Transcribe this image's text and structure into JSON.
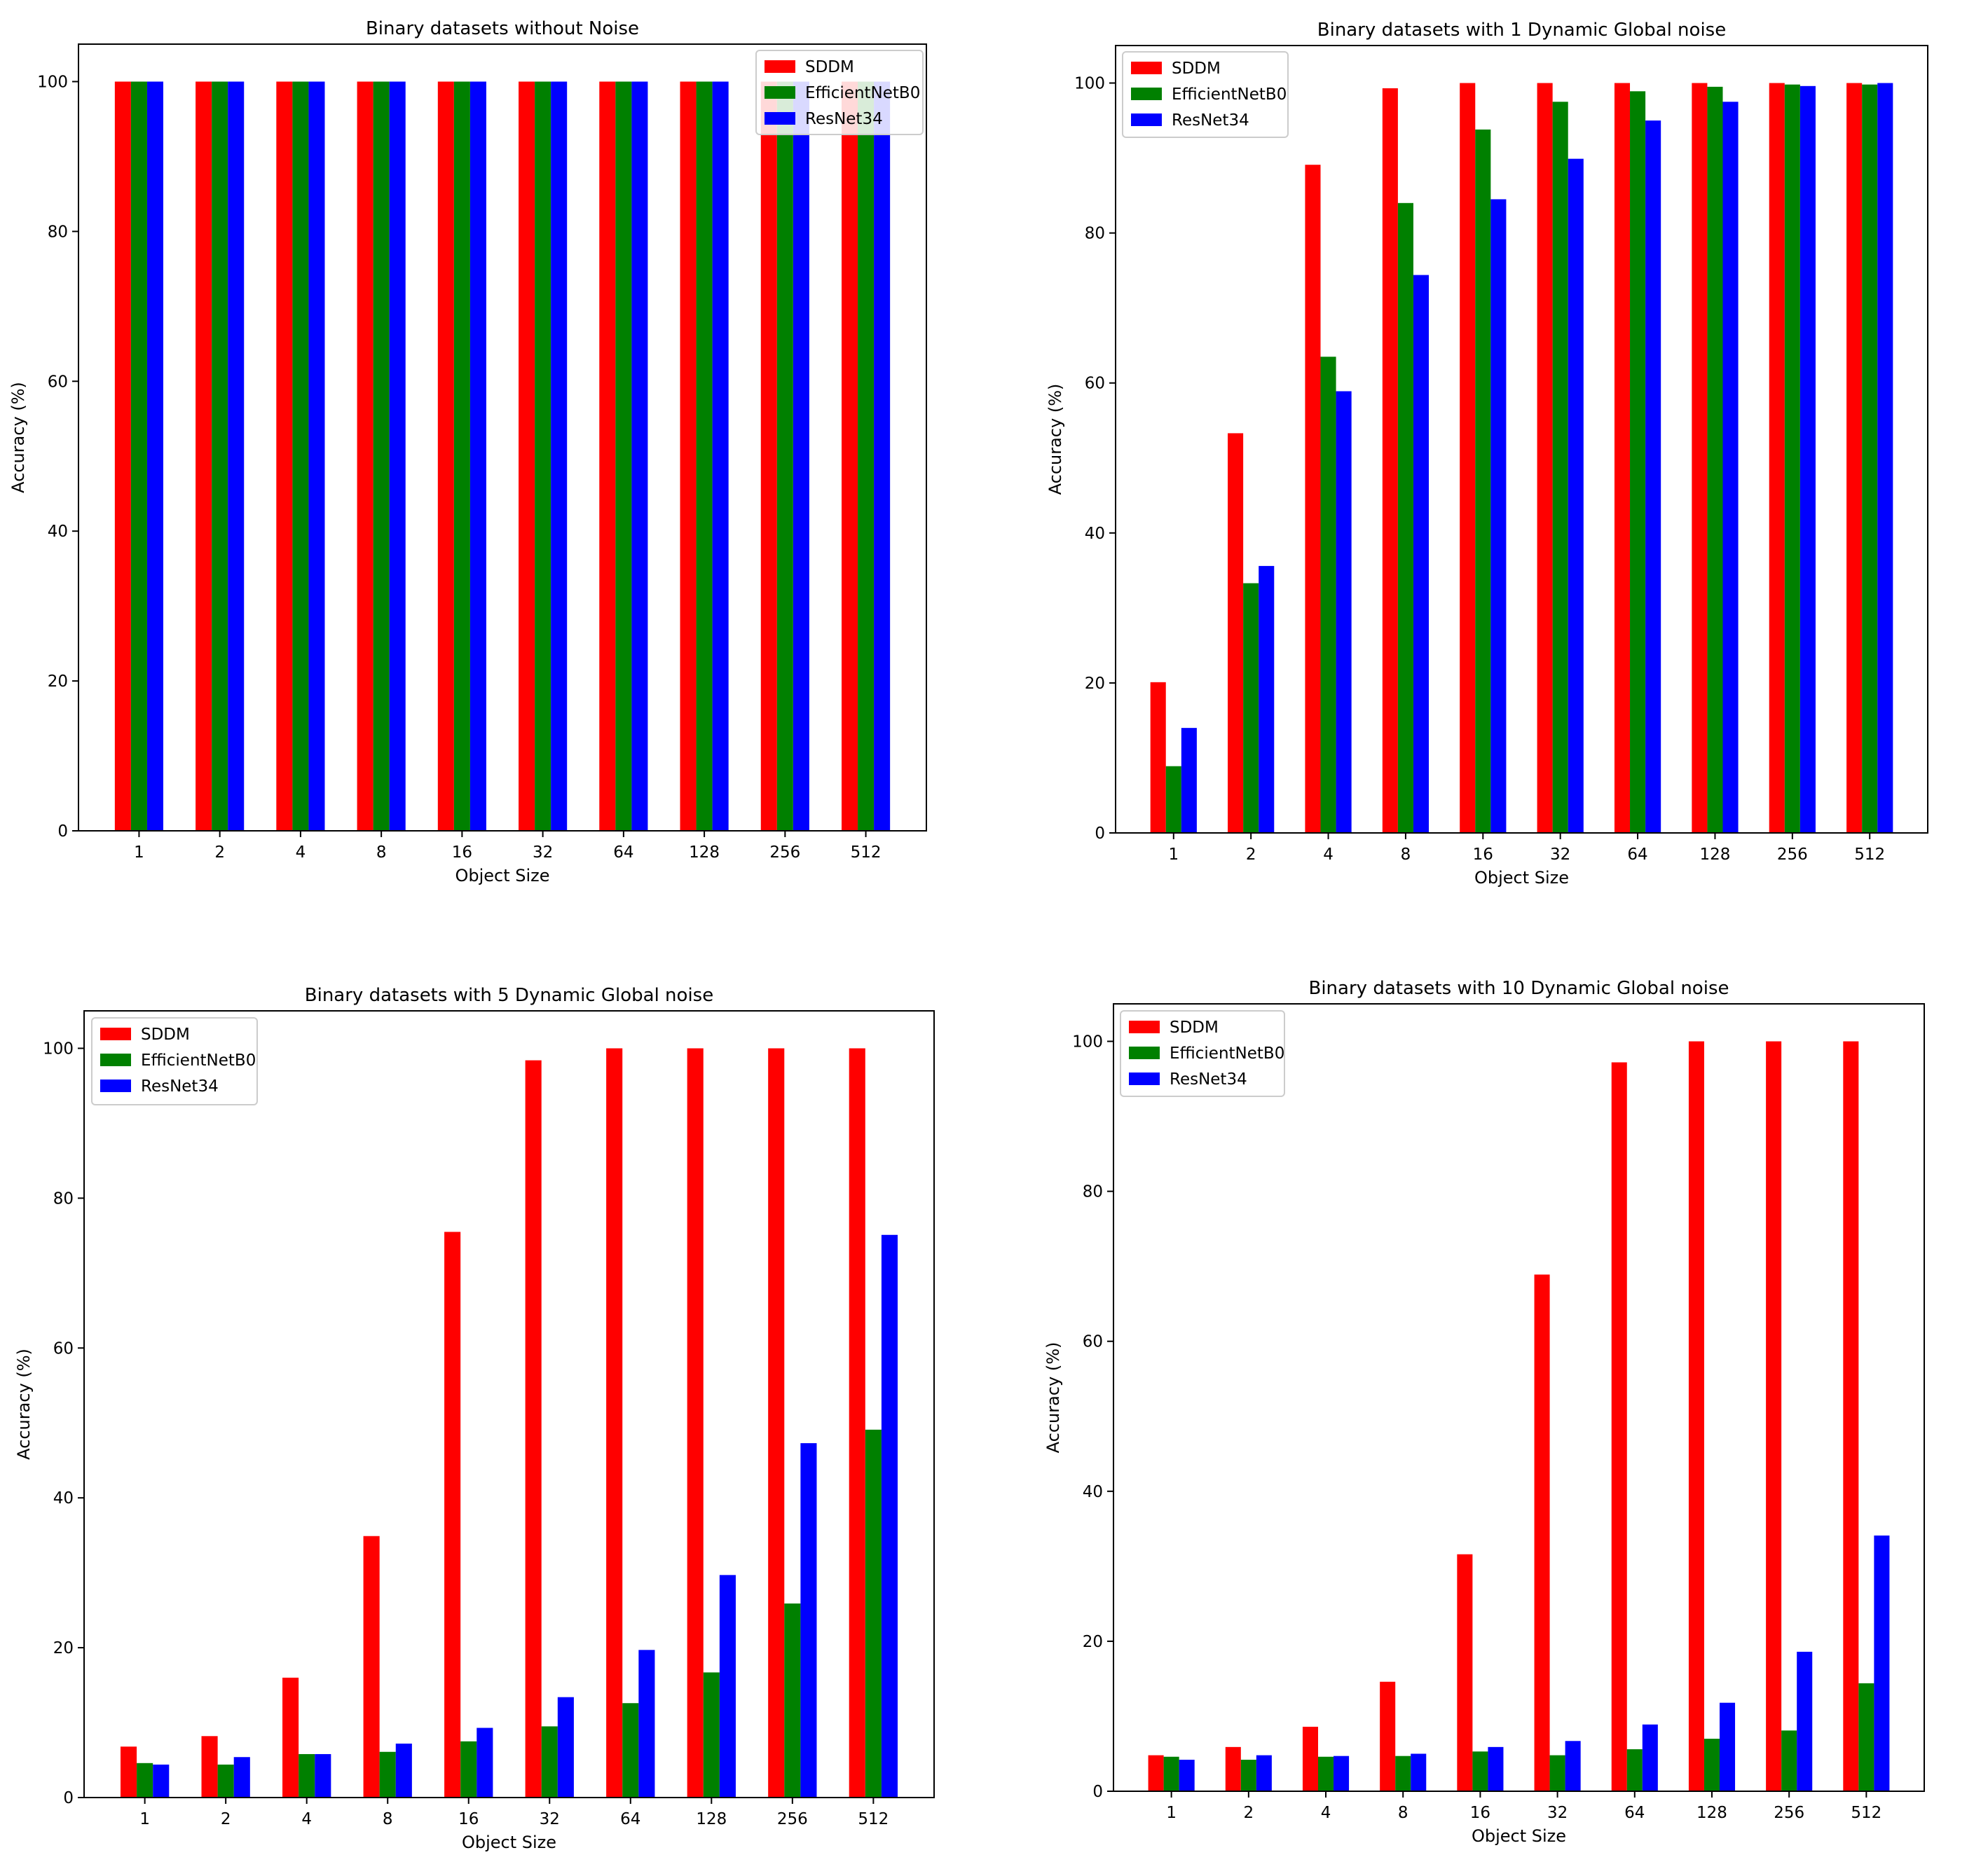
{
  "colors": {
    "SDDM": "#ff0000",
    "EfficientNetB0": "#008000",
    "ResNet34": "#0000ff"
  },
  "chart_data": [
    {
      "type": "bar",
      "title": "Binary datasets without Noise",
      "xlabel": "Object Size",
      "ylabel": "Accuracy (%)",
      "ylim": [
        0,
        105
      ],
      "yticks": [
        0,
        20,
        40,
        60,
        80,
        100
      ],
      "legend_position": "top-right",
      "categories": [
        "1",
        "2",
        "4",
        "8",
        "16",
        "32",
        "64",
        "128",
        "256",
        "512"
      ],
      "series": [
        {
          "name": "SDDM",
          "values": [
            100,
            100,
            100,
            100,
            100,
            100,
            100,
            100,
            100,
            100
          ]
        },
        {
          "name": "EfficientNetB0",
          "values": [
            100,
            100,
            100,
            100,
            100,
            100,
            100,
            100,
            100,
            100
          ]
        },
        {
          "name": "ResNet34",
          "values": [
            100,
            100,
            100,
            100,
            100,
            100,
            100,
            100,
            100,
            100
          ]
        }
      ]
    },
    {
      "type": "bar",
      "title": "Binary datasets with 1 Dynamic Global noise",
      "xlabel": "Object Size",
      "ylabel": "Accuracy (%)",
      "ylim": [
        0,
        105
      ],
      "yticks": [
        0,
        20,
        40,
        60,
        80,
        100
      ],
      "legend_position": "top-left",
      "categories": [
        "1",
        "2",
        "4",
        "8",
        "16",
        "32",
        "64",
        "128",
        "256",
        "512"
      ],
      "series": [
        {
          "name": "SDDM",
          "values": [
            20.1,
            53.3,
            89.1,
            99.3,
            100,
            100,
            100,
            100,
            100,
            100
          ]
        },
        {
          "name": "EfficientNetB0",
          "values": [
            8.9,
            33.3,
            63.5,
            84.0,
            93.8,
            97.5,
            98.9,
            99.5,
            99.8,
            99.8
          ]
        },
        {
          "name": "ResNet34",
          "values": [
            14.0,
            35.6,
            58.9,
            74.4,
            84.5,
            89.9,
            95.0,
            97.5,
            99.6,
            100
          ]
        }
      ]
    },
    {
      "type": "bar",
      "title": "Binary datasets with 5 Dynamic Global noise",
      "xlabel": "Object Size",
      "ylabel": "Accuracy (%)",
      "ylim": [
        0,
        105
      ],
      "yticks": [
        0,
        20,
        40,
        60,
        80,
        100
      ],
      "legend_position": "top-left",
      "categories": [
        "1",
        "2",
        "4",
        "8",
        "16",
        "32",
        "64",
        "128",
        "256",
        "512"
      ],
      "series": [
        {
          "name": "SDDM",
          "values": [
            6.8,
            8.2,
            16.0,
            34.9,
            75.5,
            98.4,
            100,
            100,
            100,
            100
          ]
        },
        {
          "name": "EfficientNetB0",
          "values": [
            4.6,
            4.4,
            5.8,
            6.1,
            7.5,
            9.5,
            12.6,
            16.7,
            25.9,
            49.1
          ]
        },
        {
          "name": "ResNet34",
          "values": [
            4.4,
            5.4,
            5.8,
            7.2,
            9.3,
            13.4,
            19.7,
            29.7,
            47.3,
            75.1
          ]
        }
      ]
    },
    {
      "type": "bar",
      "title": "Binary datasets with 10 Dynamic Global noise",
      "xlabel": "Object Size",
      "ylabel": "Accuracy (%)",
      "ylim": [
        0,
        105
      ],
      "yticks": [
        0,
        20,
        40,
        60,
        80,
        100
      ],
      "legend_position": "top-left",
      "categories": [
        "1",
        "2",
        "4",
        "8",
        "16",
        "32",
        "64",
        "128",
        "256",
        "512"
      ],
      "series": [
        {
          "name": "SDDM",
          "values": [
            4.8,
            5.9,
            8.6,
            14.6,
            31.6,
            68.9,
            97.2,
            100,
            100,
            100
          ]
        },
        {
          "name": "EfficientNetB0",
          "values": [
            4.6,
            4.2,
            4.6,
            4.7,
            5.3,
            4.8,
            5.6,
            7.0,
            8.1,
            14.4
          ]
        },
        {
          "name": "ResNet34",
          "values": [
            4.2,
            4.8,
            4.7,
            5.0,
            5.9,
            6.7,
            8.9,
            11.8,
            18.6,
            34.1
          ]
        }
      ]
    }
  ]
}
